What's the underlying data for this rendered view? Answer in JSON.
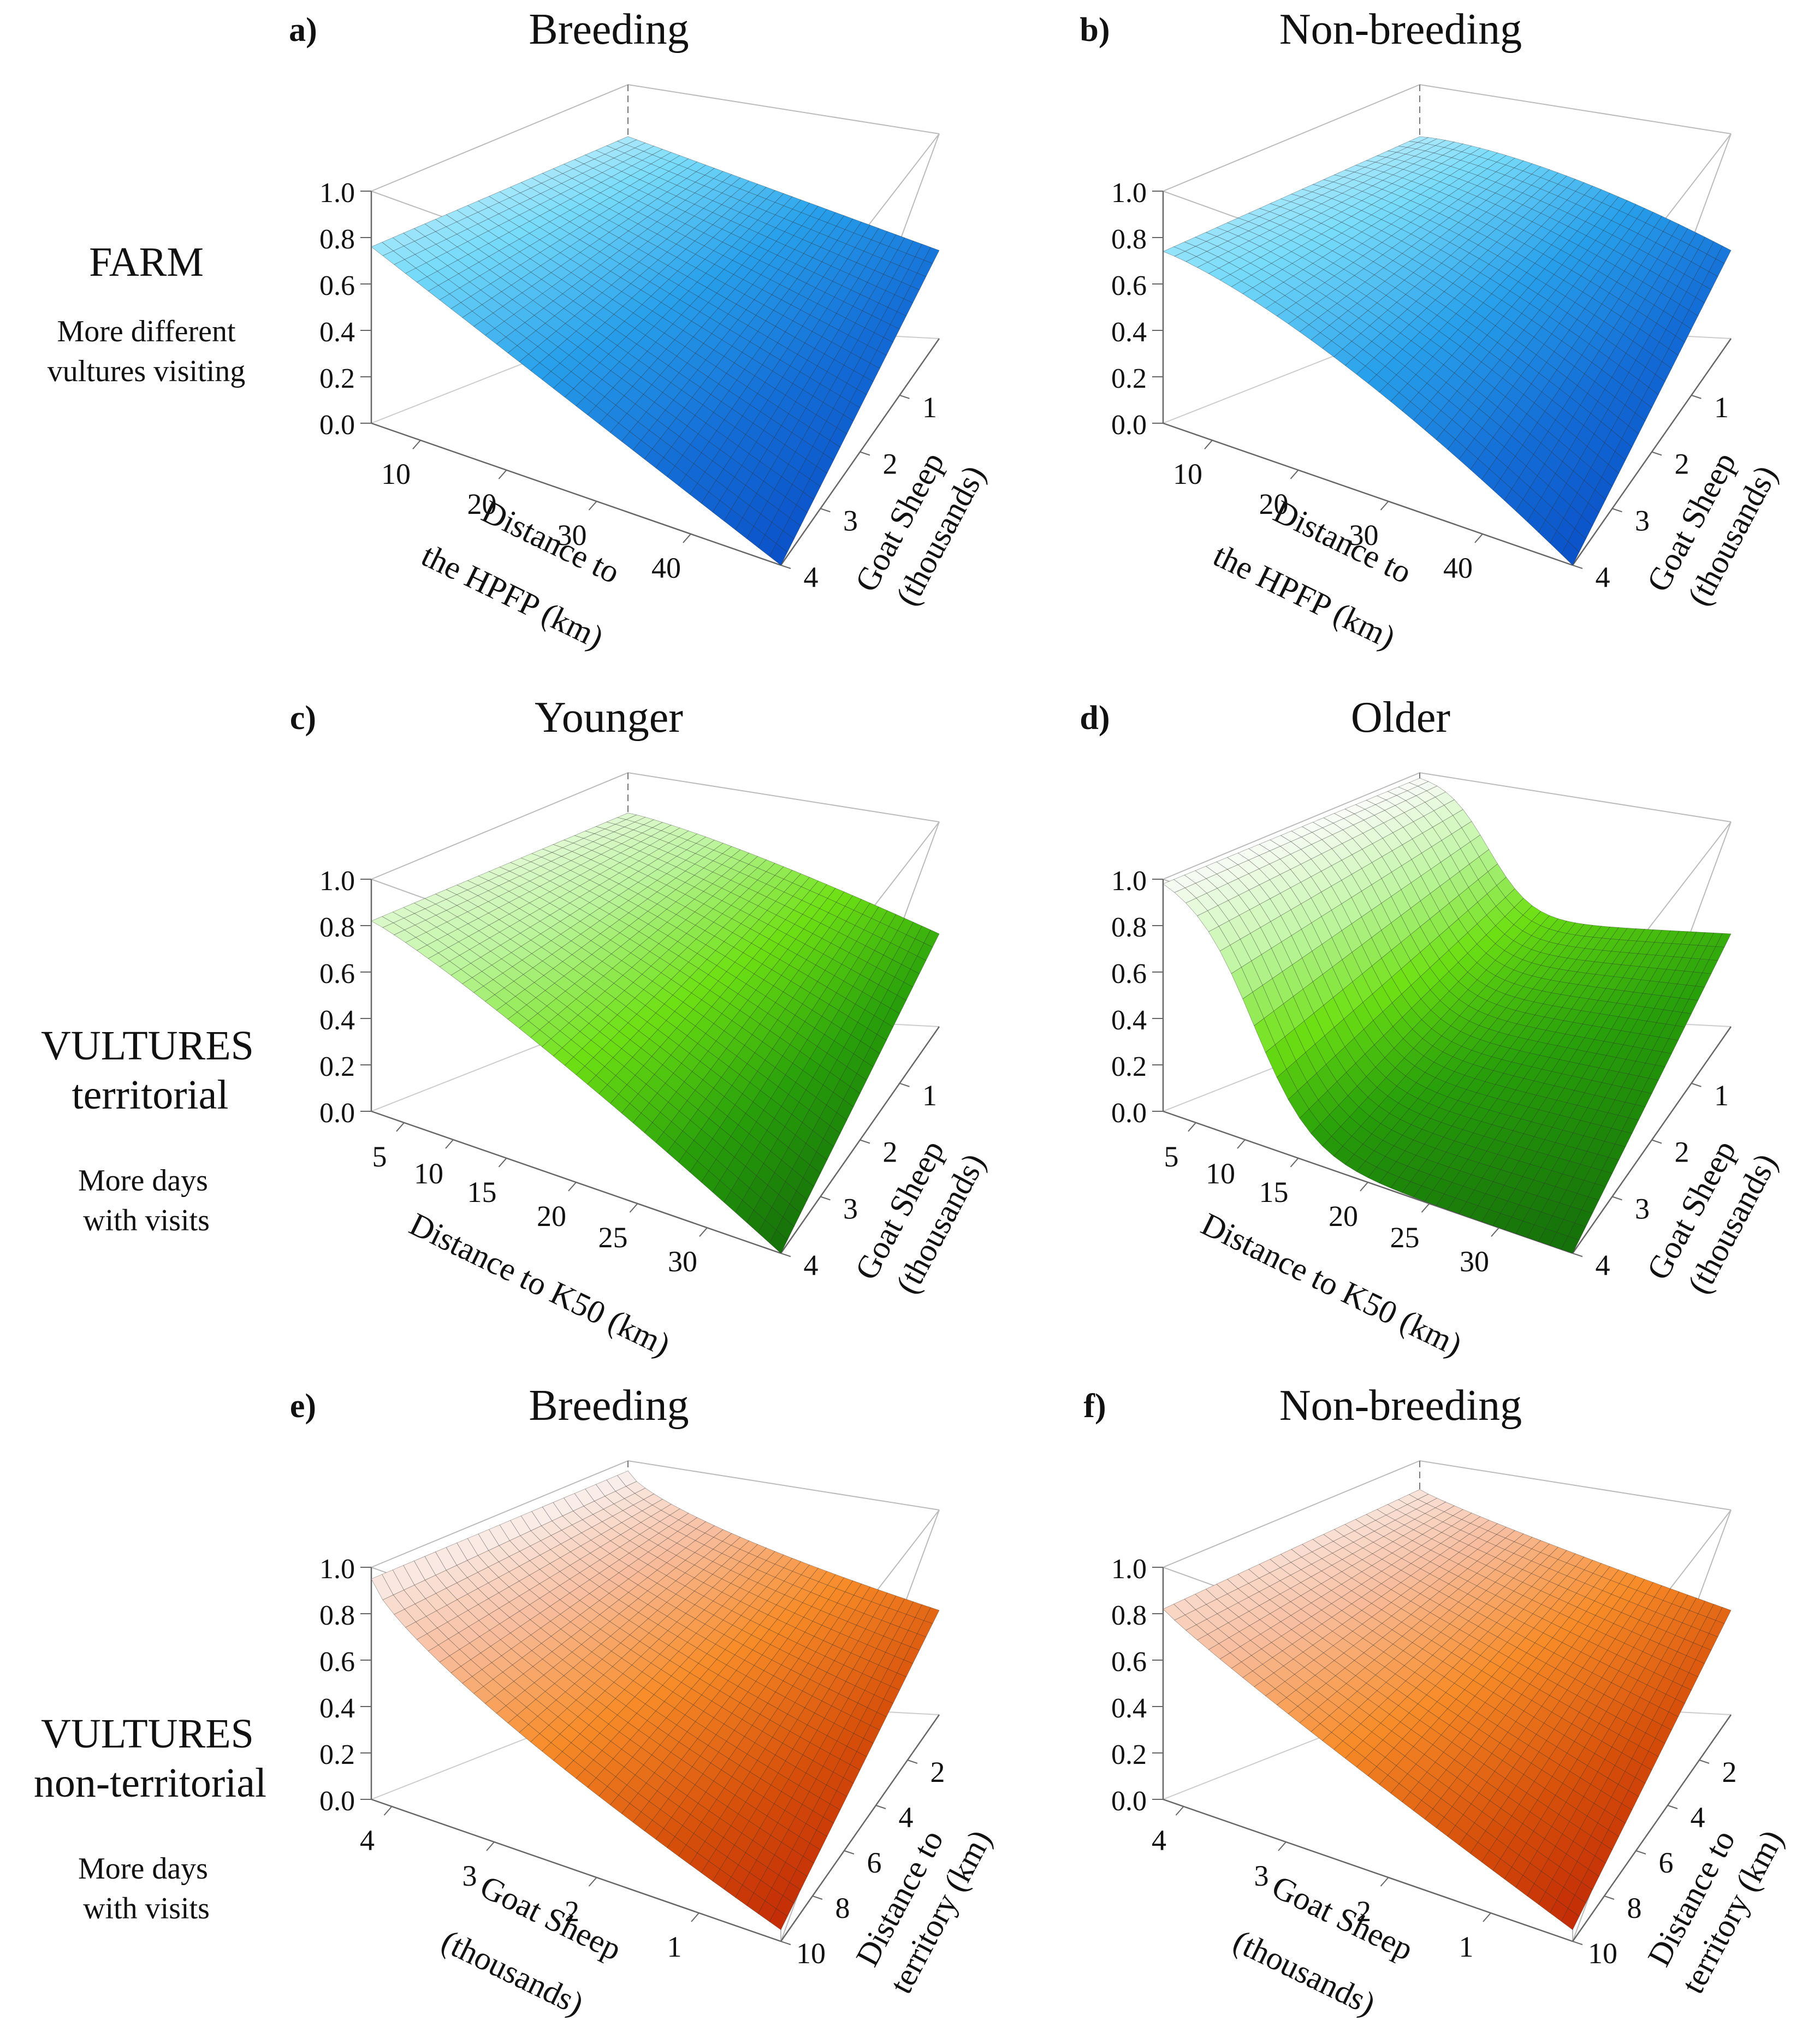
{
  "rows": [
    {
      "name": "farm",
      "title": "FARM",
      "subtitle": "",
      "note_lines": [
        "More different",
        "vultures visiting"
      ]
    },
    {
      "name": "vultures-territorial",
      "title": "VULTURES",
      "subtitle": "territorial",
      "note_lines": [
        "More days",
        "with visits"
      ]
    },
    {
      "name": "vultures-non-territorial",
      "title": "VULTURES",
      "subtitle": "non-territorial",
      "note_lines": [
        "More days",
        "with visits"
      ]
    }
  ],
  "colors": {
    "blue": "#0a6fd6",
    "green": "#1f9a0c",
    "orange": "#cc3a08",
    "axis": "#555555",
    "text": "#111111"
  },
  "chart_data": [
    {
      "panel": "a)",
      "title": "Breeding",
      "type": "surface3d",
      "color": "blue",
      "zlabel_ticks": [
        "0.0",
        "0.2",
        "0.4",
        "0.6",
        "0.8",
        "1.0"
      ],
      "zlim": [
        0,
        1
      ],
      "left_axis": {
        "label_lines": [
          "Distance to",
          "the HPFP (km)"
        ],
        "ticks": [
          "10",
          "20",
          "30",
          "40"
        ],
        "tick_pos": [
          0.12,
          0.33,
          0.55,
          0.78
        ]
      },
      "right_axis": {
        "label_lines": [
          "Goat Sheep",
          "(thousands)"
        ],
        "ticks": [
          "1",
          "2",
          "3",
          "4"
        ],
        "tick_pos": [
          0.25,
          0.5,
          0.75,
          1.0
        ]
      },
      "surface": {
        "front_z": 0.0,
        "left_z": 0.76,
        "back_z": 0.8,
        "right_z": 0.38,
        "shape": 1.0
      }
    },
    {
      "panel": "b)",
      "title": "Non-breeding",
      "type": "surface3d",
      "color": "blue",
      "zlabel_ticks": [
        "0.0",
        "0.2",
        "0.4",
        "0.6",
        "0.8",
        "1.0"
      ],
      "zlim": [
        0,
        1
      ],
      "left_axis": {
        "label_lines": [
          "Distance to",
          "the HPFP (km)"
        ],
        "ticks": [
          "10",
          "20",
          "30",
          "40"
        ],
        "tick_pos": [
          0.12,
          0.33,
          0.55,
          0.78
        ]
      },
      "right_axis": {
        "label_lines": [
          "Goat Sheep",
          "(thousands)"
        ],
        "ticks": [
          "1",
          "2",
          "3",
          "4"
        ],
        "tick_pos": [
          0.25,
          0.5,
          0.75,
          1.0
        ]
      },
      "surface": {
        "front_z": 0.0,
        "left_z": 0.74,
        "back_z": 0.8,
        "right_z": 0.38,
        "shape": 1.5
      }
    },
    {
      "panel": "c)",
      "title": "Younger",
      "type": "surface3d",
      "color": "green",
      "zlabel_ticks": [
        "0.0",
        "0.2",
        "0.4",
        "0.6",
        "0.8",
        "1.0"
      ],
      "zlim": [
        0,
        1
      ],
      "left_axis": {
        "label_lines": [
          "Distance to K50 (km)"
        ],
        "ticks": [
          "5",
          "10",
          "15",
          "20",
          "25",
          "30"
        ],
        "tick_pos": [
          0.08,
          0.2,
          0.33,
          0.5,
          0.65,
          0.82
        ]
      },
      "right_axis": {
        "label_lines": [
          "Goat Sheep",
          "(thousands)"
        ],
        "ticks": [
          "1",
          "2",
          "3",
          "4"
        ],
        "tick_pos": [
          0.25,
          0.5,
          0.75,
          1.0
        ]
      },
      "surface": {
        "front_z": 0.0,
        "left_z": 0.82,
        "back_z": 0.85,
        "right_z": 0.4,
        "shape": 1.2
      }
    },
    {
      "panel": "d)",
      "title": "Older",
      "type": "surface3d",
      "color": "green",
      "zlabel_ticks": [
        "0.0",
        "0.2",
        "0.4",
        "0.6",
        "0.8",
        "1.0"
      ],
      "zlim": [
        0,
        1
      ],
      "left_axis": {
        "label_lines": [
          "Distance to K50 (km)"
        ],
        "ticks": [
          "5",
          "10",
          "15",
          "20",
          "25",
          "30"
        ],
        "tick_pos": [
          0.08,
          0.2,
          0.33,
          0.5,
          0.65,
          0.82
        ]
      },
      "right_axis": {
        "label_lines": [
          "Goat Sheep",
          "(thousands)"
        ],
        "ticks": [
          "1",
          "2",
          "3",
          "4"
        ],
        "tick_pos": [
          0.25,
          0.5,
          0.75,
          1.0
        ]
      },
      "surface": {
        "front_z": 0.0,
        "left_z": 0.98,
        "back_z": 1.0,
        "right_z": 0.4,
        "shape": 4.0
      }
    },
    {
      "panel": "e)",
      "title": "Breeding",
      "type": "surface3d",
      "color": "orange",
      "zlabel_ticks": [
        "0.0",
        "0.2",
        "0.4",
        "0.6",
        "0.8",
        "1.0"
      ],
      "zlim": [
        0,
        1
      ],
      "left_axis": {
        "label_lines": [
          "Goat Sheep",
          "(thousands)"
        ],
        "ticks": [
          "4",
          "3",
          "2",
          "1"
        ],
        "tick_pos": [
          0.05,
          0.3,
          0.55,
          0.8
        ]
      },
      "right_axis": {
        "label_lines": [
          "Distance to",
          "territory (km)"
        ],
        "ticks": [
          "2",
          "4",
          "6",
          "8",
          "10"
        ],
        "tick_pos": [
          0.2,
          0.4,
          0.6,
          0.8,
          1.0
        ]
      },
      "surface": {
        "front_z": 0.05,
        "left_z": 0.95,
        "back_z": 0.98,
        "right_z": 0.45,
        "shape": 0.7
      }
    },
    {
      "panel": "f)",
      "title": "Non-breeding",
      "type": "surface3d",
      "color": "orange",
      "zlabel_ticks": [
        "0.0",
        "0.2",
        "0.4",
        "0.6",
        "0.8",
        "1.0"
      ],
      "zlim": [
        0,
        1
      ],
      "left_axis": {
        "label_lines": [
          "Goat Sheep",
          "(thousands)"
        ],
        "ticks": [
          "4",
          "3",
          "2",
          "1"
        ],
        "tick_pos": [
          0.05,
          0.3,
          0.55,
          0.8
        ]
      },
      "right_axis": {
        "label_lines": [
          "Distance to",
          "territory (km)"
        ],
        "ticks": [
          "2",
          "4",
          "6",
          "8",
          "10"
        ],
        "tick_pos": [
          0.2,
          0.4,
          0.6,
          0.8,
          1.0
        ]
      },
      "surface": {
        "front_z": 0.05,
        "left_z": 0.82,
        "back_z": 0.9,
        "right_z": 0.45,
        "shape": 0.9
      }
    }
  ]
}
